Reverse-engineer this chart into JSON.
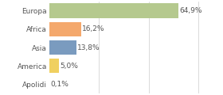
{
  "categories": [
    "Europa",
    "Africa",
    "Asia",
    "America",
    "Apolidi"
  ],
  "values": [
    64.9,
    16.2,
    13.8,
    5.0,
    0.1
  ],
  "labels": [
    "64,9%",
    "16,2%",
    "13,8%",
    "5,0%",
    "0,1%"
  ],
  "bar_colors": [
    "#b5c98e",
    "#f4a86c",
    "#7a9bbf",
    "#f0d060",
    "#d0d0d0"
  ],
  "background_color": "#ffffff",
  "label_fontsize": 6.5,
  "category_fontsize": 6.5,
  "grid_lines": [
    25,
    50,
    75
  ],
  "xlim": [
    0,
    85
  ]
}
